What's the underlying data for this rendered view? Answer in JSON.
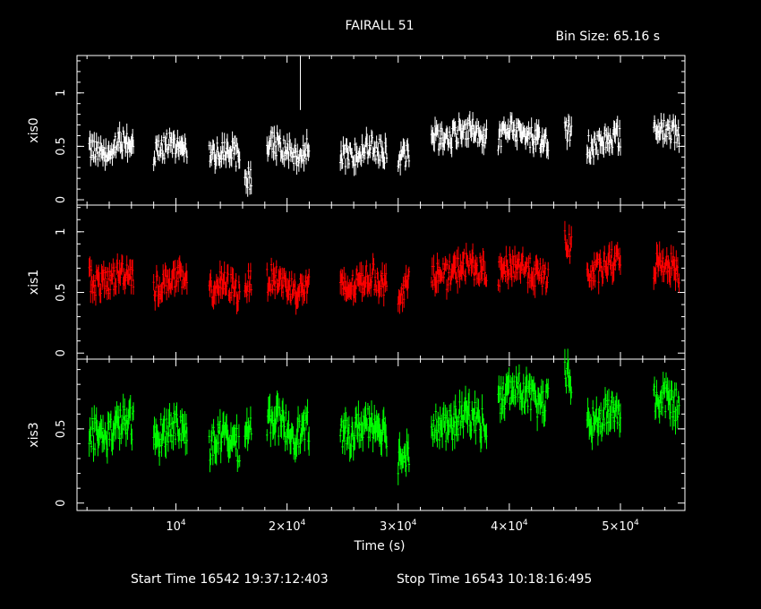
{
  "title": "FAIRALL 51",
  "bin_size_label": "Bin Size: 65.16 s",
  "footer": {
    "start": "Start Time 16542 19:37:12:403",
    "stop": "Stop Time 16543 10:18:16:495"
  },
  "chart_data": {
    "type": "scatter",
    "title": "FAIRALL 51",
    "xlabel": "Time (s)",
    "x_tick_labels": [
      "10^4",
      "2×10^4",
      "3×10^4",
      "4×10^4",
      "5×10^4"
    ],
    "x_ticks": [
      10000,
      20000,
      30000,
      40000,
      50000
    ],
    "xlim": [
      1100,
      55800
    ],
    "grid": false,
    "error_bars": true,
    "segments": [
      [
        2200,
        6200
      ],
      [
        8000,
        11000
      ],
      [
        13000,
        15800
      ],
      [
        16200,
        16800
      ],
      [
        18200,
        22000
      ],
      [
        24800,
        29000
      ],
      [
        30000,
        31000
      ],
      [
        33000,
        38000
      ],
      [
        39000,
        43500
      ],
      [
        45000,
        45600
      ],
      [
        47000,
        50000
      ],
      [
        53000,
        55300
      ]
    ],
    "panels": [
      {
        "name": "xis0",
        "color": "#ffffff",
        "ylim": [
          -0.05,
          1.35
        ],
        "yticks": [
          0,
          0.5,
          1
        ],
        "ytick_labels": [
          "0",
          "0.5",
          "1"
        ],
        "segment_levels": [
          0.5,
          0.48,
          0.42,
          0.25,
          0.48,
          0.45,
          0.42,
          0.62,
          0.6,
          0.6,
          0.55,
          0.62
        ],
        "notable_points": [
          {
            "x": 21200,
            "y": 1.1,
            "err": 0.26
          }
        ]
      },
      {
        "name": "xis1",
        "color": "#ff0000",
        "ylim": [
          -0.05,
          1.22
        ],
        "yticks": [
          0,
          0.5,
          1
        ],
        "ytick_labels": [
          "0",
          "0.5",
          "1"
        ],
        "segment_levels": [
          0.62,
          0.57,
          0.52,
          0.62,
          0.57,
          0.58,
          0.55,
          0.68,
          0.68,
          0.85,
          0.7,
          0.7
        ],
        "notable_points": []
      },
      {
        "name": "xis3",
        "color": "#00ff00",
        "ylim": [
          -0.05,
          0.97
        ],
        "yticks": [
          0,
          0.5
        ],
        "ytick_labels": [
          "0",
          "0.5"
        ],
        "segment_levels": [
          0.5,
          0.47,
          0.4,
          0.55,
          0.52,
          0.5,
          0.35,
          0.55,
          0.72,
          0.8,
          0.58,
          0.66
        ],
        "notable_points": []
      }
    ]
  }
}
